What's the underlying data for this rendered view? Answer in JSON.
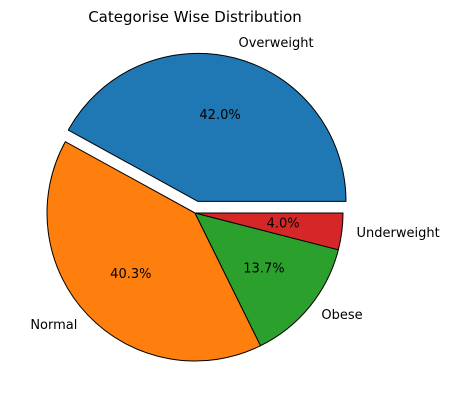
{
  "chart_data": {
    "type": "pie",
    "title": "Categorise Wise Distribution",
    "labels": [
      "Overweight",
      "Normal",
      "Obese",
      "Underweight"
    ],
    "values": [
      42.0,
      40.3,
      13.7,
      4.0
    ],
    "percent_labels": [
      "42.0%",
      "40.3%",
      "13.7%",
      "4.0%"
    ],
    "colors": [
      "#1f77b4",
      "#ff7f0e",
      "#2ca02c",
      "#d62728"
    ],
    "exploded": [
      "Overweight"
    ],
    "start_angle_deg": 0,
    "direction": "counterclockwise"
  }
}
